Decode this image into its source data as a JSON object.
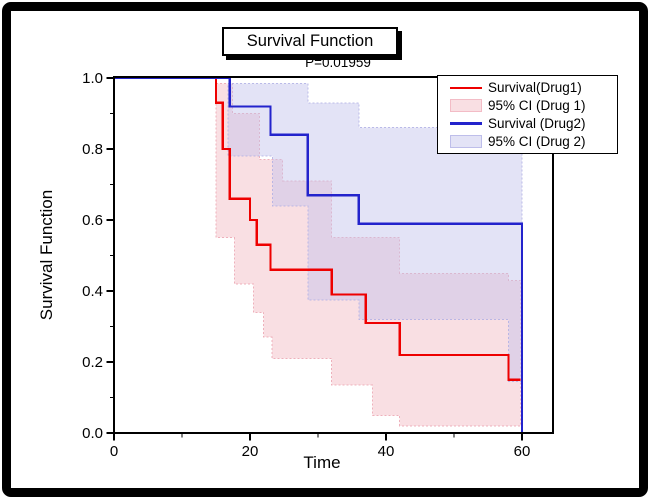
{
  "figure": {
    "title": "Survival Function",
    "p_value": "P=0.01959"
  },
  "axes": {
    "x_label": "Time",
    "y_label": "Survival Function",
    "x_tick_labels": [
      "0",
      "20",
      "40",
      "60"
    ],
    "y_tick_labels": [
      "0.0",
      "0.2",
      "0.4",
      "0.6",
      "0.8",
      "1.0"
    ]
  },
  "legend": {
    "items": [
      {
        "label": "Survival(Drug1)",
        "glyph": "line",
        "color": "#ee0000"
      },
      {
        "label": "95% CI (Drug 1)",
        "glyph": "swatch",
        "fill": "#f9dfe3",
        "edge": "#f3bcc6"
      },
      {
        "label": "Survival (Drug2)",
        "glyph": "line",
        "color": "#2323cc"
      },
      {
        "label": "95% CI (Drug 2)",
        "glyph": "swatch",
        "fill": "#e3e3f6",
        "edge": "#bebeea"
      }
    ]
  },
  "colors": {
    "drug1_line": "#ee0000",
    "drug2_line": "#2323cc",
    "ci1_fill": "#f2b8c0",
    "ci2_fill": "#c2c2ec",
    "axis": "#000000"
  },
  "chart_data": {
    "type": "line",
    "subtype": "kaplan-meier-step",
    "title": "Survival Function",
    "subtitle": "P=0.01959",
    "xlabel": "Time",
    "ylabel": "Survival Function",
    "xlim": [
      0,
      64.5
    ],
    "ylim": [
      0,
      1
    ],
    "x_major_ticks": [
      0,
      20,
      40,
      60
    ],
    "x_minor_ticks": [
      10,
      30,
      50
    ],
    "y_major_ticks": [
      0,
      0.2,
      0.4,
      0.6,
      0.8,
      1
    ],
    "y_minor_ticks": [
      0.1,
      0.3,
      0.5,
      0.7,
      0.9
    ],
    "grid": false,
    "legend_position": "top-right",
    "series": [
      {
        "name": "Survival(Drug1)",
        "color": "#ee0000",
        "points": [
          [
            0,
            1
          ],
          [
            15,
            0.93
          ],
          [
            16,
            0.8
          ],
          [
            17,
            0.66
          ],
          [
            20,
            0.6
          ],
          [
            21,
            0.53
          ],
          [
            23,
            0.46
          ],
          [
            32,
            0.39
          ],
          [
            37,
            0.31
          ],
          [
            42,
            0.22
          ],
          [
            58,
            0.15
          ]
        ],
        "end": [
          59.8,
          0.15
        ]
      },
      {
        "name": "Survival (Drug2)",
        "color": "#2323cc",
        "points": [
          [
            0,
            1
          ],
          [
            17,
            0.92
          ],
          [
            23,
            0.84
          ],
          [
            28.5,
            0.67
          ],
          [
            36,
            0.59
          ]
        ],
        "end": [
          60,
          0
        ]
      }
    ],
    "bands": [
      {
        "name": "95% CI (Drug 1)",
        "fill": "#f2b8c0",
        "edge": "#eca6b2",
        "opacity": 0.45,
        "upper": [
          [
            15,
            0.985
          ],
          [
            17.4,
            0.9
          ],
          [
            21.4,
            0.77
          ],
          [
            24.8,
            0.71
          ],
          [
            32,
            0.55
          ],
          [
            42,
            0.45
          ],
          [
            58,
            0.43
          ]
        ],
        "lower": [
          [
            15,
            0.55
          ],
          [
            17.7,
            0.42
          ],
          [
            20.5,
            0.34
          ],
          [
            22,
            0.27
          ],
          [
            23.2,
            0.21
          ],
          [
            32,
            0.135
          ],
          [
            38,
            0.05
          ],
          [
            42,
            0.02
          ]
        ],
        "end_t": 59.8
      },
      {
        "name": "95% CI (Drug 2)",
        "fill": "#c2c2ec",
        "edge": "#b0b0e4",
        "opacity": 0.45,
        "upper": [
          [
            16.8,
            0.985
          ],
          [
            28.5,
            0.93
          ],
          [
            36,
            0.86
          ]
        ],
        "lower": [
          [
            16.8,
            0.78
          ],
          [
            23.3,
            0.64
          ],
          [
            28.5,
            0.375
          ],
          [
            36,
            0.32
          ],
          [
            58,
            0.145
          ]
        ],
        "end_t": 60
      }
    ]
  }
}
